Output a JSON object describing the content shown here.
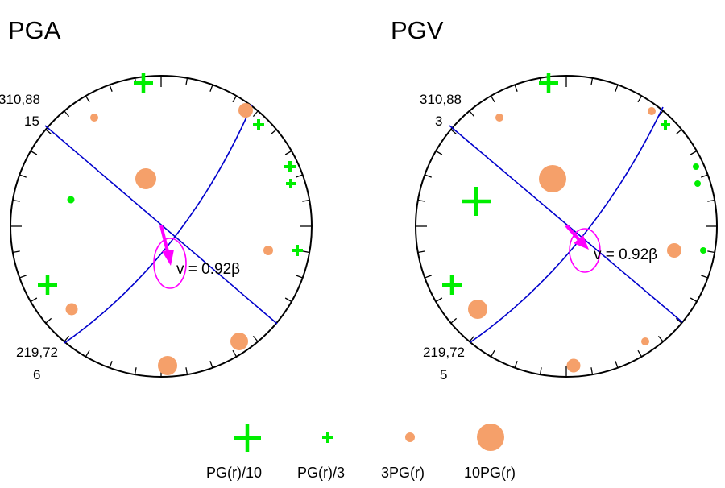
{
  "colors": {
    "plus": "#00ee00",
    "circle": "#f5a06a",
    "plane": "#0000cc",
    "vector": "#ff00ff",
    "frame": "#000000"
  },
  "panels": [
    {
      "title": "PGA",
      "plane1": {
        "label": "310,88",
        "value": "15"
      },
      "plane2": {
        "label": "219,72",
        "value": "6"
      },
      "velocity_label": "v = 0.92β"
    },
    {
      "title": "PGV",
      "plane1": {
        "label": "310,88",
        "value": "3"
      },
      "plane2": {
        "label": "219,72",
        "value": "5"
      },
      "velocity_label": "v = 0.92β"
    }
  ],
  "legend": [
    {
      "symbol": "plus-large",
      "label": "PG(r)/10"
    },
    {
      "symbol": "plus-small",
      "label": "PG(r)/3"
    },
    {
      "symbol": "circle-small",
      "label": "3PG(r)"
    },
    {
      "symbol": "circle-large",
      "label": "10PG(r)"
    }
  ]
}
